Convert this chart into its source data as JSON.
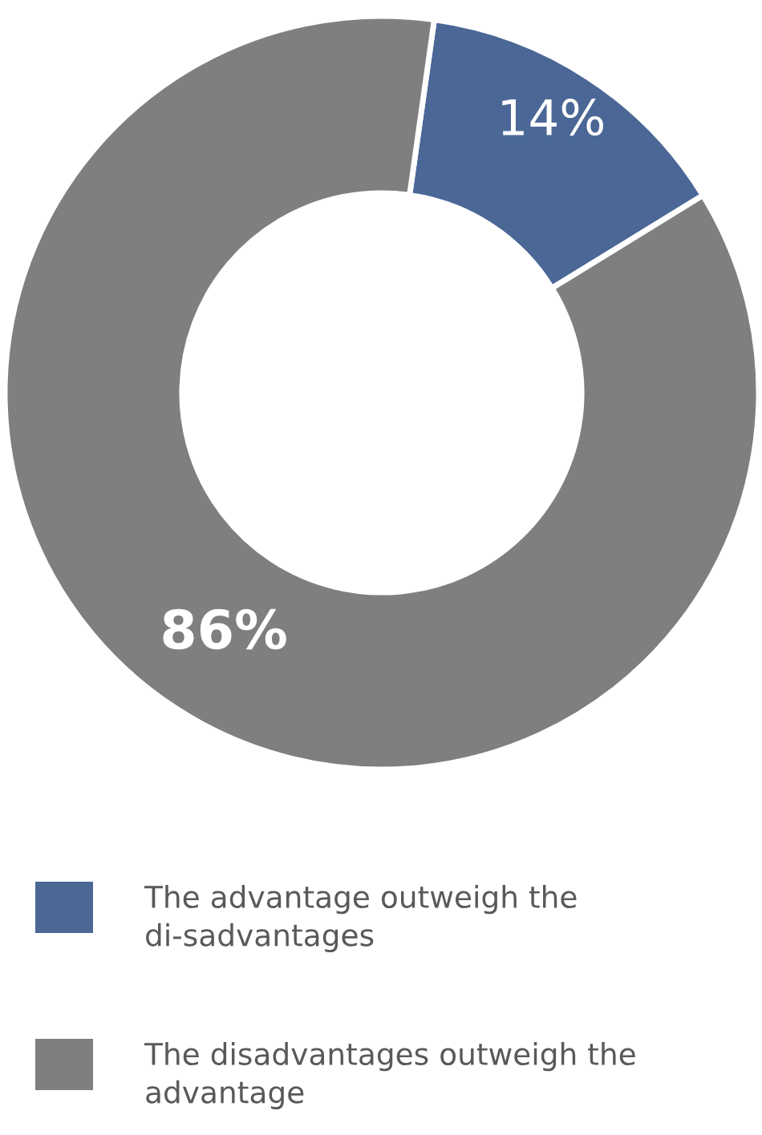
{
  "chart_data": {
    "type": "donut",
    "categories": [
      "The advantage outweigh the di-sadvantages",
      "The disadvantages outweigh the advantage"
    ],
    "values": [
      14,
      86
    ],
    "colors": [
      "#4a6796",
      "#7f7f7f"
    ],
    "value_labels": [
      "14%",
      "86%"
    ],
    "legend": "bottom"
  }
}
